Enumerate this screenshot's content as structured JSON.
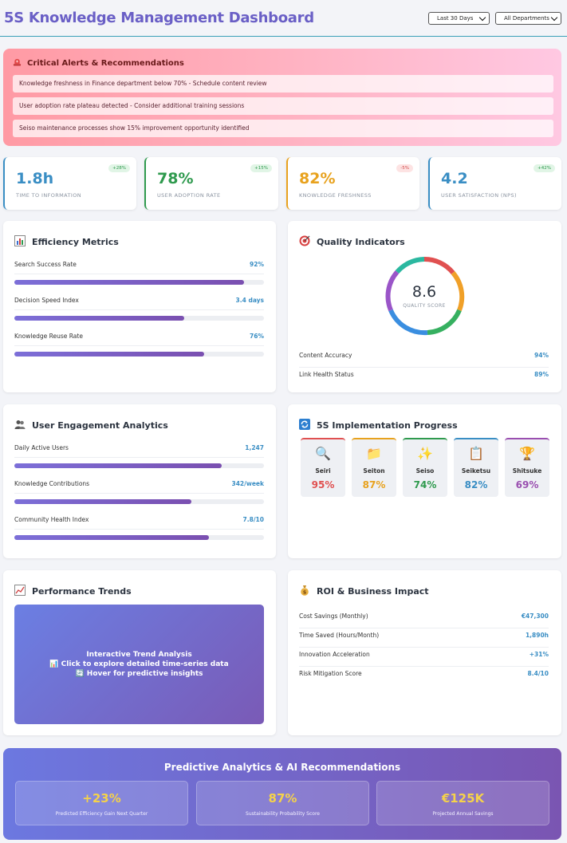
{
  "header": {
    "title": "5S Knowledge Management Dashboard",
    "period_select": "Last 30 Days",
    "department_select": "All Departments"
  },
  "alerts": {
    "heading": "Critical Alerts & Recommendations",
    "items": [
      "Knowledge freshness in Finance department below 70% - Schedule content review",
      "User adoption rate plateau detected - Consider additional training sessions",
      "Seiso maintenance processes show 15% improvement opportunity identified"
    ]
  },
  "kpis": [
    {
      "value": "1.8h",
      "label": "Time to Information",
      "badge": "+28%",
      "trend": "up",
      "color": "#3a8ec4"
    },
    {
      "value": "78%",
      "label": "User Adoption Rate",
      "badge": "+15%",
      "trend": "up",
      "color": "#2f9a4e"
    },
    {
      "value": "82%",
      "label": "Knowledge Freshness",
      "badge": "-5%",
      "trend": "down",
      "color": "#e8a21e"
    },
    {
      "value": "4.2",
      "label": "User Satisfaction (NPS)",
      "badge": "+42%",
      "trend": "up",
      "color": "#3a8ec4"
    }
  ],
  "efficiency": {
    "title": "Efficiency Metrics",
    "icon": "bar-chart-icon",
    "rows": [
      {
        "name": "Search Success Rate",
        "value": "92%",
        "fill": 0.92
      },
      {
        "name": "Decision Speed Index",
        "value": "3.4 days",
        "fill": 0.68
      },
      {
        "name": "Knowledge Reuse Rate",
        "value": "76%",
        "fill": 0.76
      }
    ]
  },
  "quality": {
    "title": "Quality Indicators",
    "icon": "target-icon",
    "score": "8.6",
    "score_label": "QUALITY SCORE",
    "rows": [
      {
        "name": "Content Accuracy",
        "value": "94%"
      },
      {
        "name": "Link Health Status",
        "value": "89%"
      }
    ]
  },
  "engagement": {
    "title": "User Engagement Analytics",
    "icon": "users-icon",
    "rows": [
      {
        "name": "Daily Active Users",
        "value": "1,247",
        "fill": 0.83
      },
      {
        "name": "Knowledge Contributions",
        "value": "342/week",
        "fill": 0.71
      },
      {
        "name": "Community Health Index",
        "value": "7.8/10",
        "fill": 0.78
      }
    ]
  },
  "fives": {
    "title": "5S Implementation Progress",
    "icon": "refresh-icon",
    "items": [
      {
        "glyph": "🔍",
        "icon": "magnifier-icon",
        "name": "Seiri",
        "pct": "95%",
        "color": "#e05050"
      },
      {
        "glyph": "📁",
        "icon": "folder-icon",
        "name": "Seiton",
        "pct": "87%",
        "color": "#e8a21e"
      },
      {
        "glyph": "✨",
        "icon": "sparkles-icon",
        "name": "Seiso",
        "pct": "74%",
        "color": "#2f9a4e"
      },
      {
        "glyph": "📋",
        "icon": "clipboard-icon",
        "name": "Seiketsu",
        "pct": "82%",
        "color": "#3a8ec4"
      },
      {
        "glyph": "🏆",
        "icon": "trophy-icon",
        "name": "Shitsuke",
        "pct": "69%",
        "color": "#9a4fb0"
      }
    ]
  },
  "trends": {
    "title": "Performance Trends",
    "icon": "line-chart-icon",
    "lines": [
      "Interactive Trend Analysis",
      "📊 Click to explore detailed time-series data",
      "🔄 Hover for predictive insights"
    ]
  },
  "roi": {
    "title": "ROI & Business Impact",
    "icon": "money-bag-icon",
    "rows": [
      {
        "name": "Cost Savings (Monthly)",
        "value": "€47,300"
      },
      {
        "name": "Time Saved (Hours/Month)",
        "value": "1,890h"
      },
      {
        "name": "Innovation Acceleration",
        "value": "+31%"
      },
      {
        "name": "Risk Mitigation Score",
        "value": "8.4/10"
      }
    ]
  },
  "predictive": {
    "title": "Predictive Analytics & AI Recommendations",
    "items": [
      {
        "value": "+23%",
        "label": "Predicted Efficiency Gain Next Quarter"
      },
      {
        "value": "87%",
        "label": "Sustainability Probability Score"
      },
      {
        "value": "€125K",
        "label": "Projected Annual Savings"
      }
    ]
  }
}
